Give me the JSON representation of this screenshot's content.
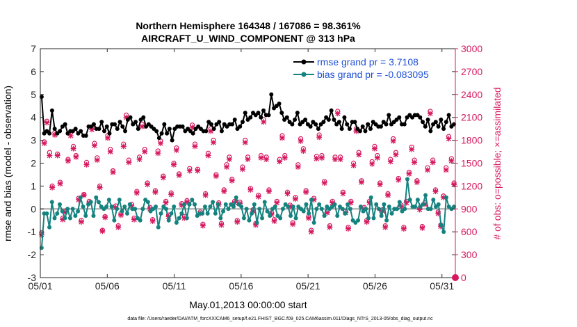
{
  "chart_data": {
    "type": "line",
    "title": "Northern Hemisphere 164348 / 167086 = 98.361%",
    "subtitle": "AIRCRAFT_U_WIND_COMPONENT @ 313 hPa",
    "xlabel": "May.01,2013 00:00:00 start",
    "ylabel": "rmse and bias (model - observation)",
    "y2label": "# of obs: o=possible; ×=assimilated",
    "xlim": [
      1,
      32
    ],
    "ylim": [
      -3,
      7
    ],
    "y2lim": [
      0,
      3000
    ],
    "x_ticks": [
      1,
      6,
      11,
      16,
      21,
      26,
      31
    ],
    "x_tick_labels": [
      "05/01",
      "05/06",
      "05/11",
      "05/16",
      "05/21",
      "05/26",
      "05/31"
    ],
    "y_ticks": [
      "-3",
      "-2",
      "-1",
      "0",
      "1",
      "2",
      "3",
      "4",
      "5",
      "6",
      "7"
    ],
    "y2_ticks": [
      "0",
      "300",
      "600",
      "900",
      "1200",
      "1500",
      "1800",
      "2100",
      "2400",
      "2700",
      "3000"
    ],
    "legend": [
      "rmse grand pr = 3.7108",
      "bias grand pr = -0.083095"
    ],
    "legend_position": "top-right",
    "series": [
      {
        "name": "rmse",
        "color": "#000000",
        "values": [
          4.9,
          3.3,
          3.4,
          3.3,
          4.3,
          3.5,
          3.3,
          3.4,
          3.6,
          3.7,
          3.3,
          3.4,
          3.4,
          3.5,
          3.3,
          3.4,
          3.2,
          3.2,
          3.6,
          3.6,
          3.7,
          3.5,
          3.5,
          3.8,
          3.4,
          3.6,
          3.3,
          3.7,
          3.7,
          3.5,
          3.8,
          3.6,
          3.4,
          3.9,
          4.0,
          3.7,
          3.8,
          3.5,
          3.9,
          4.0,
          3.6,
          3.7,
          3.6,
          3.5,
          3.4,
          3.1,
          3.3,
          3.7,
          3.3,
          3.5,
          3.0,
          3.5,
          3.6,
          3.6,
          3.6,
          3.4,
          3.5,
          3.4,
          3.3,
          3.5,
          3.6,
          3.5,
          3.4,
          3.4,
          3.8,
          3.7,
          3.5,
          3.7,
          3.8,
          3.4,
          3.7,
          3.6,
          3.7,
          3.7,
          3.9,
          3.5,
          3.6,
          3.8,
          4.2,
          3.9,
          4.0,
          4.2,
          4.1,
          4.2,
          4.0,
          4.3,
          4.1,
          4.1,
          5.0,
          4.4,
          4.5,
          4.6,
          4.2,
          3.9,
          4.0,
          3.8,
          3.7,
          3.9,
          4.2,
          3.7,
          3.8,
          3.9,
          3.7,
          3.6,
          3.8,
          3.7,
          3.5,
          3.7,
          3.8,
          4.0,
          3.9,
          4.3,
          3.9,
          3.7,
          3.8,
          3.5,
          4.0,
          3.7,
          3.5,
          3.8,
          3.8,
          3.5,
          3.4,
          3.6,
          3.4,
          3.7,
          3.5,
          3.8,
          3.7,
          3.6,
          3.6,
          3.8,
          3.7,
          4.1,
          3.7,
          3.8,
          3.9,
          4.0,
          3.7,
          3.7,
          4.0,
          4.1,
          4.0,
          4.1,
          4.1,
          4.0,
          3.8,
          3.6,
          3.9,
          3.4,
          3.7,
          3.8,
          3.6,
          3.9,
          3.5,
          3.8,
          4.1,
          3.6,
          3.7
        ]
      },
      {
        "name": "bias",
        "color": "#14827f",
        "values": [
          -1.7,
          -0.2,
          -0.2,
          -0.8,
          0.3,
          -0.4,
          -0.2,
          0.2,
          -0.1,
          -0.4,
          0.0,
          -0.4,
          0.0,
          -0.3,
          -0.1,
          0.5,
          0.1,
          -0.3,
          0.2,
          0.3,
          -0.3,
          0.5,
          0.3,
          0.1,
          0.0,
          0.1,
          0.4,
          0.1,
          -0.5,
          0.0,
          0.4,
          -0.1,
          0.1,
          -0.2,
          0.2,
          0.0,
          0.0,
          -0.4,
          -0.5,
          0.0,
          0.4,
          0.3,
          -0.1,
          0.0,
          0.1,
          -0.8,
          -0.2,
          0.1,
          0.0,
          -0.5,
          -0.2,
          0.1,
          -0.6,
          -0.4,
          -0.2,
          0.2,
          -0.4,
          0.2,
          0.4,
          0.2,
          -0.3,
          -0.2,
          -0.2,
          0.1,
          -0.2,
          0.1,
          0.3,
          -0.2,
          0.2,
          -0.4,
          -0.1,
          0.2,
          0.0,
          0.2,
          0.1,
          0.5,
          0.2,
          0.1,
          -0.4,
          0.0,
          -0.5,
          -0.2,
          0.2,
          -0.6,
          0.0,
          -0.4,
          0.3,
          -0.1,
          -0.3,
          0.0,
          0.1,
          -0.3,
          -0.4,
          0.0,
          0.2,
          0.1,
          -0.3,
          0.1,
          -0.4,
          0.1,
          0.0,
          -0.1,
          0.2,
          -0.2,
          0.4,
          -0.6,
          0.0,
          0.2,
          0.0,
          -0.3,
          0.1,
          0.0,
          0.1,
          0.2,
          -0.3,
          0.1,
          0.0,
          -0.2,
          0.2,
          0.0,
          -0.5,
          -0.6,
          -0.5,
          0.1,
          -0.1,
          0.0,
          -0.4,
          0.5,
          -0.4,
          0.2,
          0.0,
          -0.3,
          0.2,
          -0.5,
          0.1,
          -0.2,
          0.0,
          0.0,
          0.3,
          -0.1,
          0.0,
          1.3,
          0.4,
          0.1,
          0.1,
          0.4,
          0.1,
          0.2,
          0.6,
          0.0,
          0.0,
          0.4,
          0.1,
          0.2,
          -0.7,
          -1.0,
          0.5,
          0.1,
          0.0,
          0.1
        ]
      },
      {
        "name": "# obs possible",
        "color": "#d6195f",
        "marker": "o",
        "axis": "right",
        "values": [
          590,
          1780,
          2050,
          1640,
          1200,
          1900,
          1620,
          1250,
          780,
          870,
          1550,
          1900,
          1720,
          1600,
          1040,
          750,
          1090,
          1510,
          1000,
          1970,
          1760,
          1570,
          1200,
          620,
          800,
          1860,
          1680,
          1400,
          940,
          680,
          840,
          1750,
          2130,
          1540,
          960,
          780,
          1130,
          1580,
          2010,
          1680,
          1240,
          920,
          760,
          1140,
          1660,
          1790,
          1330,
          1000,
          820,
          1110,
          1500,
          1700,
          1360,
          970,
          800,
          1010,
          1430,
          2000,
          1750,
          1420,
          860,
          700,
          1100,
          1630,
          1950,
          1800,
          1350,
          980,
          710,
          1150,
          1480,
          1580,
          1290,
          1000,
          750,
          990,
          1450,
          1800,
          1580,
          1170,
          890,
          710,
          1080,
          1600,
          2070,
          1580,
          1150,
          850,
          760,
          1000,
          1550,
          1860,
          1600,
          1120,
          950,
          720,
          1050,
          1480,
          1820,
          1690,
          1140,
          800,
          620,
          1040,
          1590,
          1870,
          1600,
          1260,
          870,
          680,
          1000,
          1580,
          2180,
          1580,
          1120,
          870,
          660,
          1000,
          1500,
          1950,
          1640,
          1270,
          920,
          750,
          1000,
          1520,
          1720,
          1600,
          1240,
          890,
          680,
          1100,
          1550,
          1820,
          1640,
          1300,
          950,
          660,
          1000,
          1380,
          1710,
          1540,
          1270,
          910,
          670,
          980,
          1440,
          2180,
          1540,
          1150,
          860,
          690,
          1070,
          1440,
          1850,
          1560,
          1240
        ]
      },
      {
        "name": "# obs assimilated",
        "color": "#d6195f",
        "marker": "x",
        "axis": "right",
        "values": [
          560,
          1760,
          2030,
          1600,
          1180,
          1870,
          1600,
          1230,
          760,
          860,
          1530,
          1860,
          1690,
          1580,
          1020,
          730,
          1080,
          1480,
          980,
          1940,
          1730,
          1540,
          1180,
          610,
          790,
          1830,
          1650,
          1380,
          920,
          660,
          820,
          1720,
          2100,
          1510,
          940,
          760,
          1110,
          1550,
          1980,
          1650,
          1220,
          900,
          740,
          1120,
          1630,
          1760,
          1310,
          980,
          800,
          1090,
          1480,
          1670,
          1340,
          950,
          780,
          990,
          1400,
          1970,
          1720,
          1400,
          840,
          680,
          1080,
          1600,
          1920,
          1770,
          1330,
          960,
          690,
          1130,
          1450,
          1550,
          1270,
          980,
          730,
          970,
          1420,
          1770,
          1550,
          1150,
          870,
          690,
          1060,
          1570,
          2040,
          1550,
          1130,
          830,
          740,
          980,
          1520,
          1830,
          1570,
          1100,
          930,
          700,
          1030,
          1450,
          1790,
          1660,
          1120,
          780,
          600,
          1020,
          1560,
          1840,
          1570,
          1240,
          850,
          660,
          980,
          1550,
          2150,
          1550,
          1100,
          850,
          640,
          980,
          1470,
          1920,
          1610,
          1250,
          900,
          730,
          980,
          1490,
          1690,
          1570,
          1220,
          870,
          660,
          1080,
          1520,
          1790,
          1610,
          1280,
          930,
          640,
          980,
          1360,
          1680,
          1510,
          1250,
          890,
          650,
          960,
          1410,
          2150,
          1510,
          1130,
          840,
          670,
          1050,
          1410,
          1820,
          1530,
          1220
        ]
      }
    ],
    "footer": "data file: /Users/raeder/DAI/ATM_forcXX/CAM6_setup/f.e21.FHIST_BGC.f09_025.CAM6assim.011/Diags_NTrS_2013-05/obs_diag_output.nc"
  }
}
